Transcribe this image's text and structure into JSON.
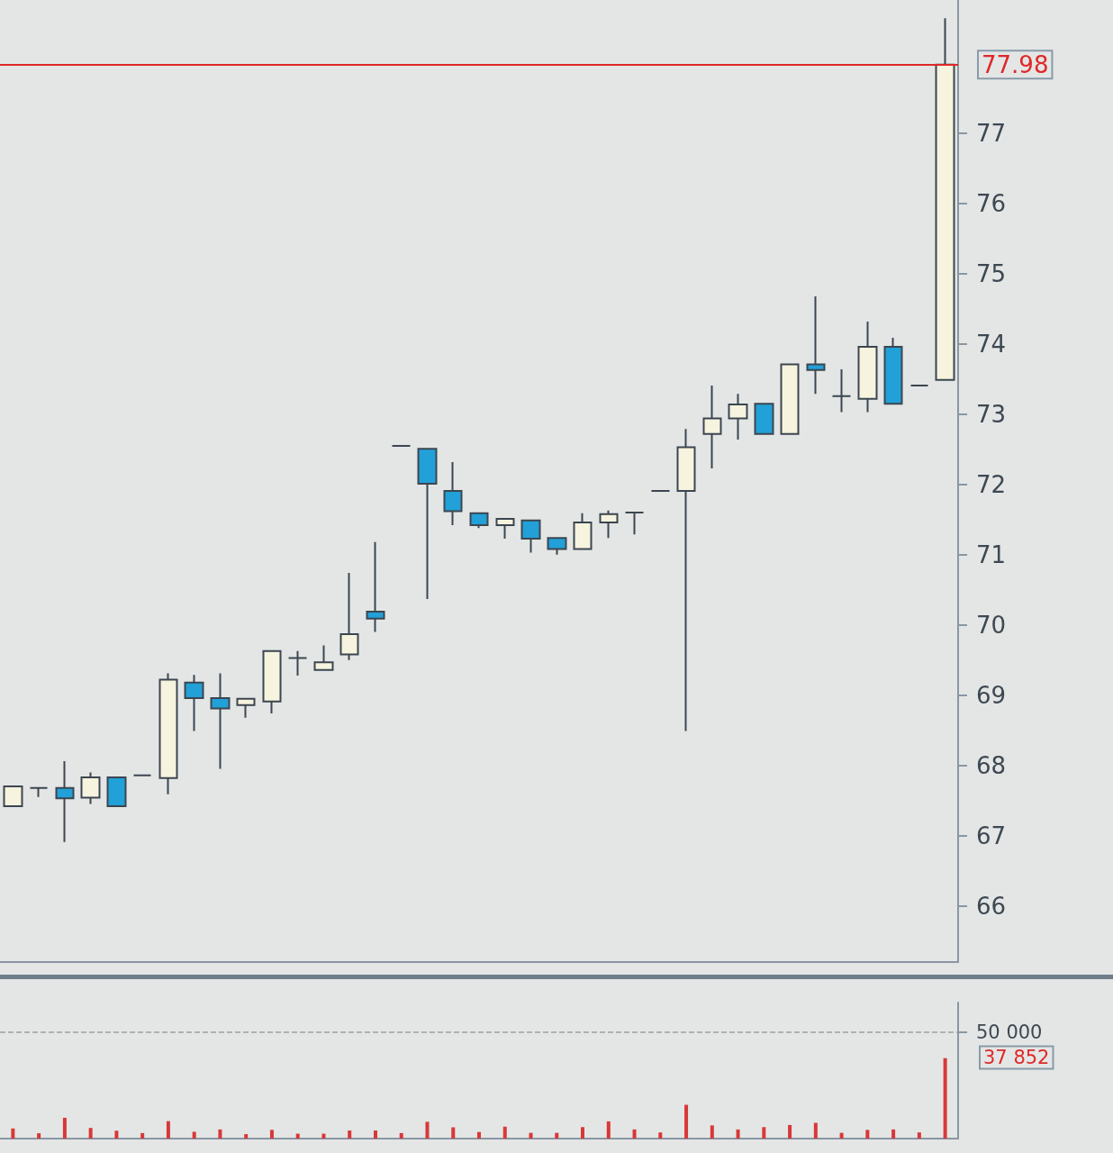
{
  "chart_data": [
    {
      "type": "candlestick",
      "categories": [
        null,
        null,
        null,
        null,
        null,
        null,
        null,
        null,
        null,
        null,
        null,
        null,
        null,
        null,
        null,
        null,
        null,
        null,
        null,
        null,
        null,
        null,
        null,
        null,
        null,
        null,
        null,
        null,
        null,
        null,
        null,
        null,
        null,
        null,
        null,
        null,
        null
      ],
      "ohlc": [
        [
          67.42,
          67.7,
          67.42,
          67.7
        ],
        [
          67.68,
          67.68,
          67.55,
          67.68
        ],
        [
          67.68,
          68.06,
          66.91,
          67.53
        ],
        [
          67.54,
          67.9,
          67.45,
          67.83
        ],
        [
          67.83,
          67.83,
          67.42,
          67.42
        ],
        [
          67.86,
          67.86,
          67.86,
          67.86
        ],
        [
          67.82,
          69.31,
          67.59,
          69.22
        ],
        [
          69.18,
          69.29,
          68.49,
          68.96
        ],
        [
          68.96,
          69.31,
          67.95,
          68.81
        ],
        [
          68.86,
          68.95,
          68.68,
          68.95
        ],
        [
          68.91,
          69.63,
          68.74,
          69.63
        ],
        [
          69.53,
          69.63,
          69.28,
          69.53
        ],
        [
          69.36,
          69.71,
          69.36,
          69.47
        ],
        [
          69.58,
          70.74,
          69.5,
          69.87
        ],
        [
          70.19,
          71.18,
          69.9,
          70.09
        ],
        [
          72.55,
          72.55,
          72.55,
          72.55
        ],
        [
          72.51,
          72.51,
          70.37,
          72.01
        ],
        [
          71.91,
          72.32,
          71.42,
          71.62
        ],
        [
          71.59,
          71.59,
          71.38,
          71.42
        ],
        [
          71.42,
          71.51,
          71.23,
          71.51
        ],
        [
          71.49,
          71.49,
          71.03,
          71.23
        ],
        [
          71.24,
          71.24,
          71.0,
          71.08
        ],
        [
          71.08,
          71.59,
          71.08,
          71.46
        ],
        [
          71.46,
          71.63,
          71.24,
          71.58
        ],
        [
          71.6,
          71.6,
          71.29,
          71.6
        ],
        [
          71.91,
          71.91,
          71.91,
          71.91
        ],
        [
          71.91,
          72.79,
          68.49,
          72.53
        ],
        [
          72.72,
          73.41,
          72.23,
          72.94
        ],
        [
          72.94,
          73.29,
          72.64,
          73.14
        ],
        [
          73.15,
          73.15,
          72.72,
          72.72
        ],
        [
          72.72,
          73.71,
          72.72,
          73.71
        ],
        [
          73.71,
          74.68,
          73.29,
          73.63
        ],
        [
          73.26,
          73.64,
          73.03,
          73.26
        ],
        [
          73.22,
          74.32,
          73.03,
          73.96
        ],
        [
          73.96,
          74.09,
          73.15,
          73.15
        ],
        [
          73.41,
          73.41,
          73.41,
          73.41
        ],
        [
          73.49,
          78.64,
          73.49,
          77.98
        ]
      ],
      "colors": [
        "#f6f3de",
        "#3c4650",
        "#22a0d8",
        "#f6f3de",
        "#22a0d8",
        "#3c4650",
        "#f6f3de",
        "#22a0d8",
        "#22a0d8",
        "#f6f3de",
        "#f6f3de",
        "#3c4650",
        "#f6f3de",
        "#f6f3de",
        "#22a0d8",
        "#3c4650",
        "#22a0d8",
        "#22a0d8",
        "#22a0d8",
        "#f6f3de",
        "#22a0d8",
        "#22a0d8",
        "#f6f3de",
        "#f6f3de",
        "#3c4650",
        "#3c4650",
        "#f6f3de",
        "#f6f3de",
        "#f6f3de",
        "#22a0d8",
        "#f6f3de",
        "#22a0d8",
        "#3c4650",
        "#f6f3de",
        "#22a0d8",
        "#3c4650",
        "#f6f3de"
      ],
      "ylim": [
        65.2,
        78.9
      ],
      "yticks": [
        66,
        67,
        68,
        69,
        70,
        71,
        72,
        73,
        74,
        75,
        76,
        77
      ],
      "ref_lines": [
        {
          "axis": "y",
          "value": 77.98,
          "label": "77.98",
          "color": "#e02828"
        }
      ],
      "tick_labels": "y"
    },
    {
      "type": "bar",
      "categories": [
        null,
        null,
        null,
        null,
        null,
        null,
        null,
        null,
        null,
        null,
        null,
        null,
        null,
        null,
        null,
        null,
        null,
        null,
        null,
        null,
        null,
        null,
        null,
        null,
        null,
        null,
        null,
        null,
        null,
        null,
        null,
        null,
        null,
        null,
        null,
        null,
        null
      ],
      "values": [
        4800,
        2500,
        9800,
        5000,
        3700,
        2600,
        8200,
        3200,
        4300,
        2100,
        4100,
        2300,
        2300,
        3800,
        3800,
        2600,
        7900,
        5300,
        3100,
        5600,
        2700,
        2700,
        5400,
        8100,
        4300,
        2900,
        15900,
        6200,
        4300,
        5400,
        6400,
        7400,
        2700,
        4100,
        4300,
        2900,
        37852
      ],
      "color": "#d83838",
      "ylim": [
        0,
        64000
      ],
      "yticks": [
        {
          "value": 50000,
          "label": "50 000"
        }
      ],
      "annotations": [
        "37 852"
      ],
      "grid": "y",
      "tick_labels": "y"
    }
  ]
}
